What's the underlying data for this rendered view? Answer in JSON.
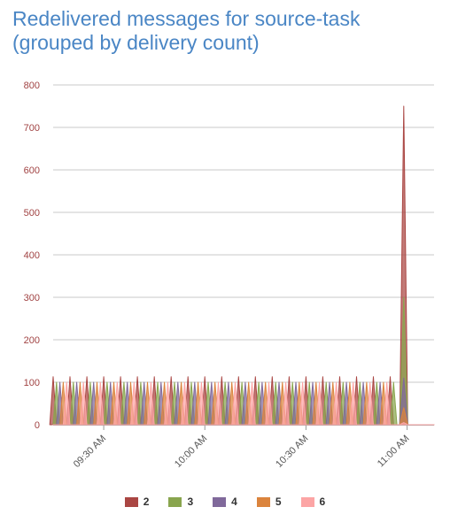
{
  "title_lines": [
    "Redelivered messages for source-task",
    "(grouped by delivery count)"
  ],
  "chart_data": {
    "type": "area",
    "title": "Redelivered messages for source-task (grouped by delivery count)",
    "xlabel": "",
    "ylabel": "",
    "ylim": [
      0,
      800
    ],
    "yticks": [
      0,
      100,
      200,
      300,
      400,
      500,
      600,
      700,
      800
    ],
    "x_range": [
      "09:15 AM",
      "11:08 AM"
    ],
    "xticks": [
      "09:30 AM",
      "10:00 AM",
      "10:30 AM",
      "11:00 AM"
    ],
    "grid": true,
    "legend_position": "bottom",
    "pattern": {
      "description_values": "Each series repeats a triangular pulse every 5 minutes; pulses of series 2..6 are offset by 1 minute each. Peak of regular pulses shown below; series stop at 11:00 AM.",
      "period_minutes": 5,
      "regular_peak": {
        "2": 113,
        "3": 100,
        "4": 100,
        "5": 100,
        "6": 100
      },
      "regular_end": "10:56 AM"
    },
    "series": [
      {
        "name": "2",
        "color": "#aa4643",
        "regular_peak": 113,
        "spike": {
          "time": "10:59 AM",
          "value": 750
        }
      },
      {
        "name": "3",
        "color": "#89a54e",
        "regular_peak": 100,
        "spike": {
          "time": "10:59 AM",
          "value": 300
        }
      },
      {
        "name": "4",
        "color": "#80699b",
        "regular_peak": 100,
        "spike": {
          "time": "10:59 AM",
          "value": 110
        }
      },
      {
        "name": "5",
        "color": "#db843d",
        "regular_peak": 100,
        "spike": {
          "time": "10:59 AM",
          "value": 40
        }
      },
      {
        "name": "6",
        "color": "#fca5a5",
        "regular_peak": 100,
        "spike": {
          "time": "10:59 AM",
          "value": 5
        }
      }
    ]
  }
}
